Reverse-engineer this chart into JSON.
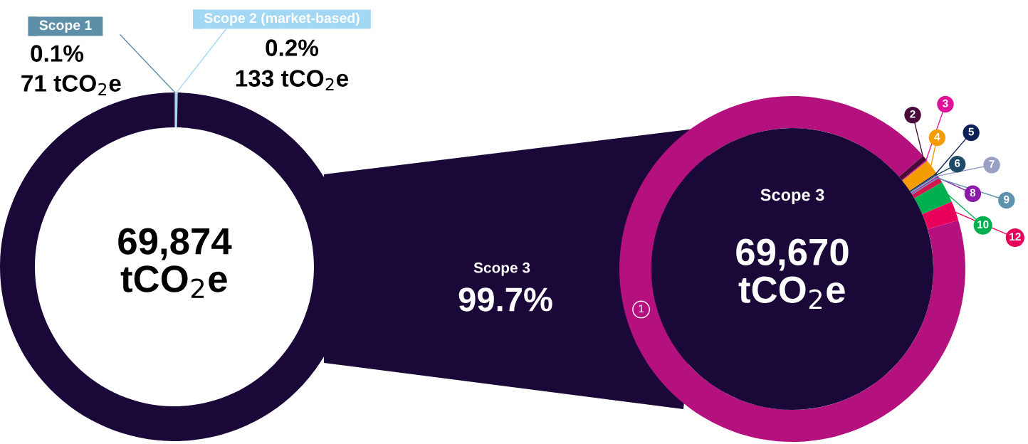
{
  "chart_data": [
    {
      "type": "donut",
      "categories": [
        "Scope 1",
        "Scope 2 (market-based)",
        "Scope 3"
      ],
      "values": [
        0.1,
        0.2,
        99.7
      ],
      "colors": [
        "#5e8fa8",
        "#a3d8f4",
        "#1a0839"
      ],
      "value_labels": [
        "0.1%",
        "0.2%",
        "99.7%"
      ],
      "legend": "top",
      "annotations": [
        "71 tCO$_{2}$e",
        "133 tCO$_{2}$e",
        "69,874\ntCO$_{2}$e"
      ]
    },
    {
      "type": "donut",
      "title": "Scope 3",
      "categories": [
        "1",
        "2",
        "3",
        "4",
        "5",
        "6",
        "7",
        "8",
        "9",
        null,
        "10",
        "12"
      ],
      "values": [
        93.2,
        0.5,
        0.1,
        1.4,
        0.1,
        0.1,
        0.1,
        0.1,
        0.1,
        0.5,
        2.0,
        1.8
      ],
      "colors": [
        "#b5117e",
        "#4a0a3a",
        "#e0119a",
        "#f59c00",
        "#0d2157",
        "#1f4a66",
        "#9aa0c4",
        "#8a1aa8",
        "#5e93ad",
        "#d01850",
        "#00b050",
        "#e8005a"
      ],
      "annotations": [
        "69,670\ntCO$_{2}$e"
      ]
    }
  ]
}
